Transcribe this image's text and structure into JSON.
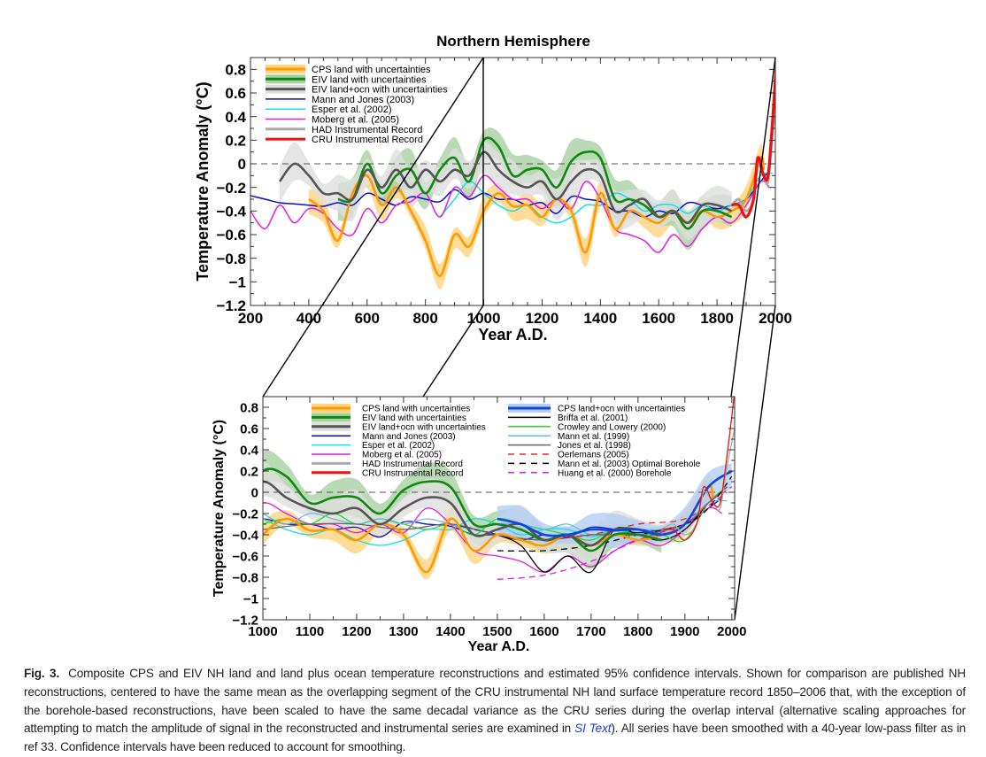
{
  "chart_data": [
    {
      "type": "line",
      "title": "Northern Hemisphere",
      "xlabel": "Year A.D.",
      "ylabel": "Temperature Anomaly (°C)",
      "xlim": [
        200,
        2000
      ],
      "ylim": [
        -1.2,
        0.9
      ],
      "grid": false,
      "zero_line": "dashed",
      "legend": "top-left",
      "xticks": [
        200,
        400,
        600,
        800,
        1000,
        1200,
        1400,
        1600,
        1800,
        2000
      ],
      "xtick_labels": [
        "200",
        "400",
        "600",
        "800",
        "1000",
        "1200",
        "1400",
        "1600",
        "1800",
        "2000"
      ],
      "yticks": [
        0.8,
        0.6,
        0.4,
        0.2,
        0,
        -0.2,
        -0.4,
        -0.6,
        -0.8,
        -1,
        -1.2
      ],
      "ytick_labels": [
        "0.8",
        "0.6",
        "0.4",
        "0.2",
        "0",
        "−0.2",
        "−0.4",
        "−0.6",
        "−0.8",
        "−1",
        "−1.2"
      ],
      "series": [
        {
          "name": "CPS land with uncertainties",
          "color": "#ff9900",
          "band_color": "#ffd580",
          "band": 0.09,
          "x": [
            400,
            450,
            500,
            550,
            600,
            650,
            700,
            750,
            800,
            850,
            900,
            950,
            1000,
            1050,
            1100,
            1150,
            1200,
            1250,
            1300,
            1350,
            1400,
            1450,
            1500,
            1550,
            1600,
            1650,
            1700,
            1750,
            1800,
            1850,
            1900,
            1950,
            1960
          ],
          "y": [
            -0.3,
            -0.4,
            -0.65,
            -0.25,
            -0.1,
            -0.35,
            -0.2,
            -0.4,
            -0.65,
            -0.95,
            -0.6,
            -0.7,
            -0.4,
            -0.25,
            -0.36,
            -0.35,
            -0.45,
            -0.3,
            -0.4,
            -0.75,
            -0.25,
            -0.55,
            -0.4,
            -0.45,
            -0.5,
            -0.4,
            -0.5,
            -0.4,
            -0.45,
            -0.4,
            -0.3,
            0.05,
            -0.05
          ]
        },
        {
          "name": "EIV land with uncertainties",
          "color": "#118811",
          "band_color": "#a9cfa2",
          "band": 0.13,
          "x": [
            500,
            550,
            600,
            650,
            700,
            750,
            800,
            850,
            900,
            950,
            1000,
            1050,
            1100,
            1150,
            1200,
            1250,
            1300,
            1350,
            1400,
            1450,
            1500,
            1550,
            1600,
            1650,
            1700,
            1750,
            1800,
            1850
          ],
          "y": [
            -0.3,
            -0.3,
            0.0,
            -0.25,
            -0.1,
            -0.05,
            -0.25,
            -0.05,
            0.05,
            -0.15,
            0.2,
            0.15,
            -0.1,
            -0.05,
            -0.05,
            -0.2,
            0.02,
            0.1,
            0.05,
            -0.3,
            -0.3,
            -0.35,
            -0.45,
            -0.4,
            -0.55,
            -0.4,
            -0.4,
            -0.45
          ]
        },
        {
          "name": "EIV land+ocn with uncertainties",
          "color": "#555555",
          "band_color": "#dedede",
          "band": 0.13,
          "x": [
            300,
            350,
            400,
            450,
            500,
            550,
            600,
            650,
            700,
            750,
            800,
            850,
            900,
            950,
            1000,
            1050,
            1100,
            1150,
            1200,
            1250,
            1300,
            1350,
            1400,
            1450,
            1500,
            1550,
            1600,
            1650,
            1700,
            1750,
            1800,
            1850
          ],
          "y": [
            -0.15,
            0.0,
            -0.1,
            -0.25,
            -0.25,
            -0.3,
            -0.05,
            -0.2,
            -0.05,
            -0.2,
            -0.05,
            -0.15,
            -0.05,
            -0.1,
            0.1,
            -0.05,
            -0.15,
            -0.2,
            -0.15,
            -0.3,
            -0.15,
            -0.05,
            -0.1,
            -0.4,
            -0.35,
            -0.3,
            -0.45,
            -0.4,
            -0.5,
            -0.35,
            -0.35,
            -0.4
          ]
        },
        {
          "name": "Mann and Jones (2003)",
          "color": "#0a0acc",
          "x": [
            200,
            250,
            300,
            350,
            400,
            450,
            500,
            550,
            600,
            650,
            700,
            750,
            800,
            850,
            900,
            950,
            1000,
            1050,
            1100,
            1150,
            1200,
            1250,
            1300,
            1350,
            1400,
            1450,
            1500,
            1550,
            1600,
            1650,
            1700,
            1750,
            1800,
            1850,
            1900,
            1950,
            1980
          ],
          "y": [
            -0.27,
            -0.3,
            -0.33,
            -0.34,
            -0.35,
            -0.36,
            -0.33,
            -0.35,
            -0.25,
            -0.3,
            -0.35,
            -0.28,
            -0.3,
            -0.32,
            -0.22,
            -0.3,
            -0.25,
            -0.3,
            -0.3,
            -0.35,
            -0.33,
            -0.42,
            -0.28,
            -0.3,
            -0.32,
            -0.4,
            -0.4,
            -0.45,
            -0.4,
            -0.42,
            -0.33,
            -0.35,
            -0.38,
            -0.35,
            -0.3,
            -0.15,
            -0.05
          ]
        },
        {
          "name": "Esper et al. (2002)",
          "color": "#11e0ee",
          "x": [
            850,
            900,
            950,
            1000,
            1050,
            1100,
            1150,
            1200,
            1250,
            1300,
            1350,
            1400,
            1450,
            1500,
            1550,
            1600,
            1650,
            1700,
            1750,
            1800,
            1850,
            1900,
            1950,
            1990
          ],
          "y": [
            -0.45,
            -0.3,
            -0.15,
            -0.25,
            -0.35,
            -0.4,
            -0.35,
            -0.45,
            -0.5,
            -0.45,
            -0.35,
            -0.35,
            -0.25,
            -0.3,
            -0.4,
            -0.35,
            -0.35,
            -0.42,
            -0.35,
            -0.4,
            -0.35,
            -0.3,
            -0.1,
            -0.08
          ]
        },
        {
          "name": "Moberg et al. (2005)",
          "color": "#e21de2",
          "x": [
            200,
            250,
            300,
            350,
            400,
            450,
            500,
            550,
            600,
            650,
            700,
            750,
            800,
            850,
            900,
            950,
            1000,
            1050,
            1100,
            1150,
            1200,
            1250,
            1300,
            1350,
            1400,
            1450,
            1500,
            1550,
            1600,
            1650,
            1700,
            1750,
            1800,
            1850,
            1900,
            1950,
            1979
          ],
          "y": [
            -0.4,
            -0.55,
            -0.35,
            -0.5,
            -0.38,
            -0.42,
            -0.55,
            -0.6,
            -0.38,
            -0.5,
            -0.35,
            -0.32,
            -0.25,
            -0.45,
            -0.2,
            -0.28,
            -0.1,
            -0.2,
            -0.3,
            -0.3,
            -0.38,
            -0.3,
            -0.38,
            -0.15,
            -0.3,
            -0.55,
            -0.6,
            -0.65,
            -0.75,
            -0.6,
            -0.7,
            -0.55,
            -0.45,
            -0.5,
            -0.35,
            -0.15,
            -0.2
          ]
        },
        {
          "name": "HAD Instrumental Record",
          "color": "#aaaaaa",
          "x": [
            1850,
            1875,
            1900,
            1925,
            1940,
            1960,
            1975,
            1990,
            2006
          ],
          "y": [
            -0.35,
            -0.3,
            -0.4,
            -0.3,
            0.0,
            -0.1,
            -0.15,
            0.25,
            0.6
          ]
        },
        {
          "name": "CRU Instrumental Record",
          "color": "#ee1111",
          "x": [
            1850,
            1875,
            1900,
            1925,
            1940,
            1960,
            1975,
            1990,
            2006
          ],
          "y": [
            -0.35,
            -0.35,
            -0.45,
            -0.3,
            0.05,
            -0.1,
            -0.1,
            0.35,
            0.95
          ]
        }
      ]
    },
    {
      "type": "line",
      "title": "",
      "xlabel": "Year A.D.",
      "ylabel": "Temperature Anomaly (°C)",
      "xlim": [
        1000,
        2006
      ],
      "ylim": [
        -1.2,
        0.9
      ],
      "grid": false,
      "zero_line": "dashed",
      "legend": "top",
      "xticks": [
        1000,
        1100,
        1200,
        1300,
        1400,
        1500,
        1600,
        1700,
        1800,
        1900,
        2000
      ],
      "xtick_labels": [
        "1000",
        "1100",
        "1200",
        "1300",
        "1400",
        "1500",
        "1600",
        "1700",
        "1800",
        "1900",
        "2000"
      ],
      "yticks": [
        0.8,
        0.6,
        0.4,
        0.2,
        0,
        -0.2,
        -0.4,
        -0.6,
        -0.8,
        -1,
        -1.2
      ],
      "ytick_labels": [
        "0.8",
        "0.6",
        "0.4",
        "0.2",
        "0",
        "−0.2",
        "−0.4",
        "−0.6",
        "−0.8",
        "−1",
        "−1.2"
      ],
      "series": [
        {
          "name": "CPS land with uncertainties",
          "color": "#ff9900"
        },
        {
          "name": "EIV land with uncertainties",
          "color": "#118811"
        },
        {
          "name": "EIV land+ocn with uncertainties",
          "color": "#555555"
        },
        {
          "name": "Mann and Jones (2003)",
          "color": "#0a0acc"
        },
        {
          "name": "Esper et al. (2002)",
          "color": "#11e0ee"
        },
        {
          "name": "Moberg et al. (2005)",
          "color": "#e21de2"
        },
        {
          "name": "HAD Instrumental Record",
          "color": "#aaaaaa"
        },
        {
          "name": "CRU Instrumental Record",
          "color": "#ee1111"
        },
        {
          "name": "CPS land+ocn with uncertainties",
          "color": "#0a46e0",
          "band_color": "#b4cdf5",
          "band": 0.12,
          "x": [
            1500,
            1550,
            1600,
            1650,
            1700,
            1750,
            1800,
            1850,
            1900,
            1950,
            2000
          ],
          "y": [
            -0.25,
            -0.3,
            -0.4,
            -0.4,
            -0.35,
            -0.36,
            -0.35,
            -0.4,
            -0.3,
            0.05,
            0.2
          ]
        },
        {
          "name": "Briffa et al. (2001)",
          "color": "#000000",
          "x": [
            1400,
            1450,
            1500,
            1550,
            1600,
            1650,
            1700,
            1750,
            1800,
            1850,
            1900,
            1950
          ],
          "y": [
            -0.3,
            -0.35,
            -0.4,
            -0.5,
            -0.75,
            -0.6,
            -0.75,
            -0.35,
            -0.4,
            -0.45,
            -0.35,
            -0.1
          ]
        },
        {
          "name": "Crowley and Lowery (2000)",
          "color": "#22dd22",
          "x": [
            1000,
            1050,
            1100,
            1150,
            1200,
            1250,
            1300,
            1350,
            1400,
            1450,
            1500,
            1550,
            1600,
            1650,
            1700,
            1750,
            1800,
            1850,
            1900,
            1950,
            1990
          ],
          "y": [
            -0.3,
            -0.25,
            -0.3,
            -0.2,
            -0.3,
            -0.25,
            -0.3,
            -0.35,
            -0.3,
            -0.4,
            -0.25,
            -0.3,
            -0.35,
            -0.4,
            -0.45,
            -0.35,
            -0.4,
            -0.4,
            -0.45,
            -0.1,
            0.05
          ]
        },
        {
          "name": "Mann et al. (1999)",
          "color": "#66bbdd",
          "x": [
            1000,
            1050,
            1100,
            1150,
            1200,
            1250,
            1300,
            1350,
            1400,
            1450,
            1500,
            1550,
            1600,
            1650,
            1700,
            1750,
            1800,
            1850,
            1900,
            1950,
            1980
          ],
          "y": [
            -0.2,
            -0.3,
            -0.2,
            -0.25,
            -0.3,
            -0.25,
            -0.3,
            -0.25,
            -0.3,
            -0.35,
            -0.3,
            -0.3,
            -0.35,
            -0.3,
            -0.4,
            -0.35,
            -0.35,
            -0.35,
            -0.3,
            -0.1,
            0.0
          ]
        },
        {
          "name": "Jones et al. (1998)",
          "color": "#666666",
          "x": [
            1000,
            1100,
            1200,
            1300,
            1400,
            1500,
            1600,
            1700,
            1800,
            1900,
            1950,
            1990
          ],
          "y": [
            -0.35,
            -0.3,
            -0.3,
            -0.35,
            -0.3,
            -0.4,
            -0.45,
            -0.4,
            -0.4,
            -0.3,
            -0.1,
            0.05
          ]
        },
        {
          "name": "Oerlemans (2005)",
          "color": "#ee2222",
          "dash": true,
          "x": [
            1600,
            1700,
            1800,
            1900,
            1990
          ],
          "y": [
            -0.45,
            -0.4,
            -0.3,
            -0.25,
            0.0
          ]
        },
        {
          "name": "Mann et al. (2003) Optimal Borehole",
          "color": "#000000",
          "dash": true,
          "x": [
            1500,
            1600,
            1700,
            1800,
            1900,
            1950,
            2000
          ],
          "y": [
            -0.55,
            -0.55,
            -0.5,
            -0.4,
            -0.3,
            -0.15,
            0.15
          ]
        },
        {
          "name": "Huang et al. (2000) Borehole",
          "color": "#e21de2",
          "dash": true,
          "x": [
            1500,
            1600,
            1700,
            1800,
            1900,
            1950,
            2000
          ],
          "y": [
            -0.82,
            -0.78,
            -0.65,
            -0.45,
            -0.3,
            -0.1,
            0.05
          ]
        }
      ]
    }
  ],
  "caption": {
    "label": "Fig. 3.",
    "text_before_link": "Composite CPS and EIV NH land and land plus ocean temperature reconstructions and estimated 95% confidence intervals. Shown for comparison are published NH reconstructions, centered to have the same mean as the overlapping segment of the CRU instrumental NH land surface temperature record 1850–2006 that, with the exception of the borehole-based reconstructions, have been scaled to have the same decadal variance as the CRU series during the overlap interval (alternative scaling approaches for attempting to match the amplitude of signal in the reconstructed and instrumental series are examined in ",
    "link": "SI Text",
    "text_after_link": "). All series have been smoothed with a 40-year low-pass filter as in ref 33. Confidence intervals have been reduced to account for smoothing."
  }
}
